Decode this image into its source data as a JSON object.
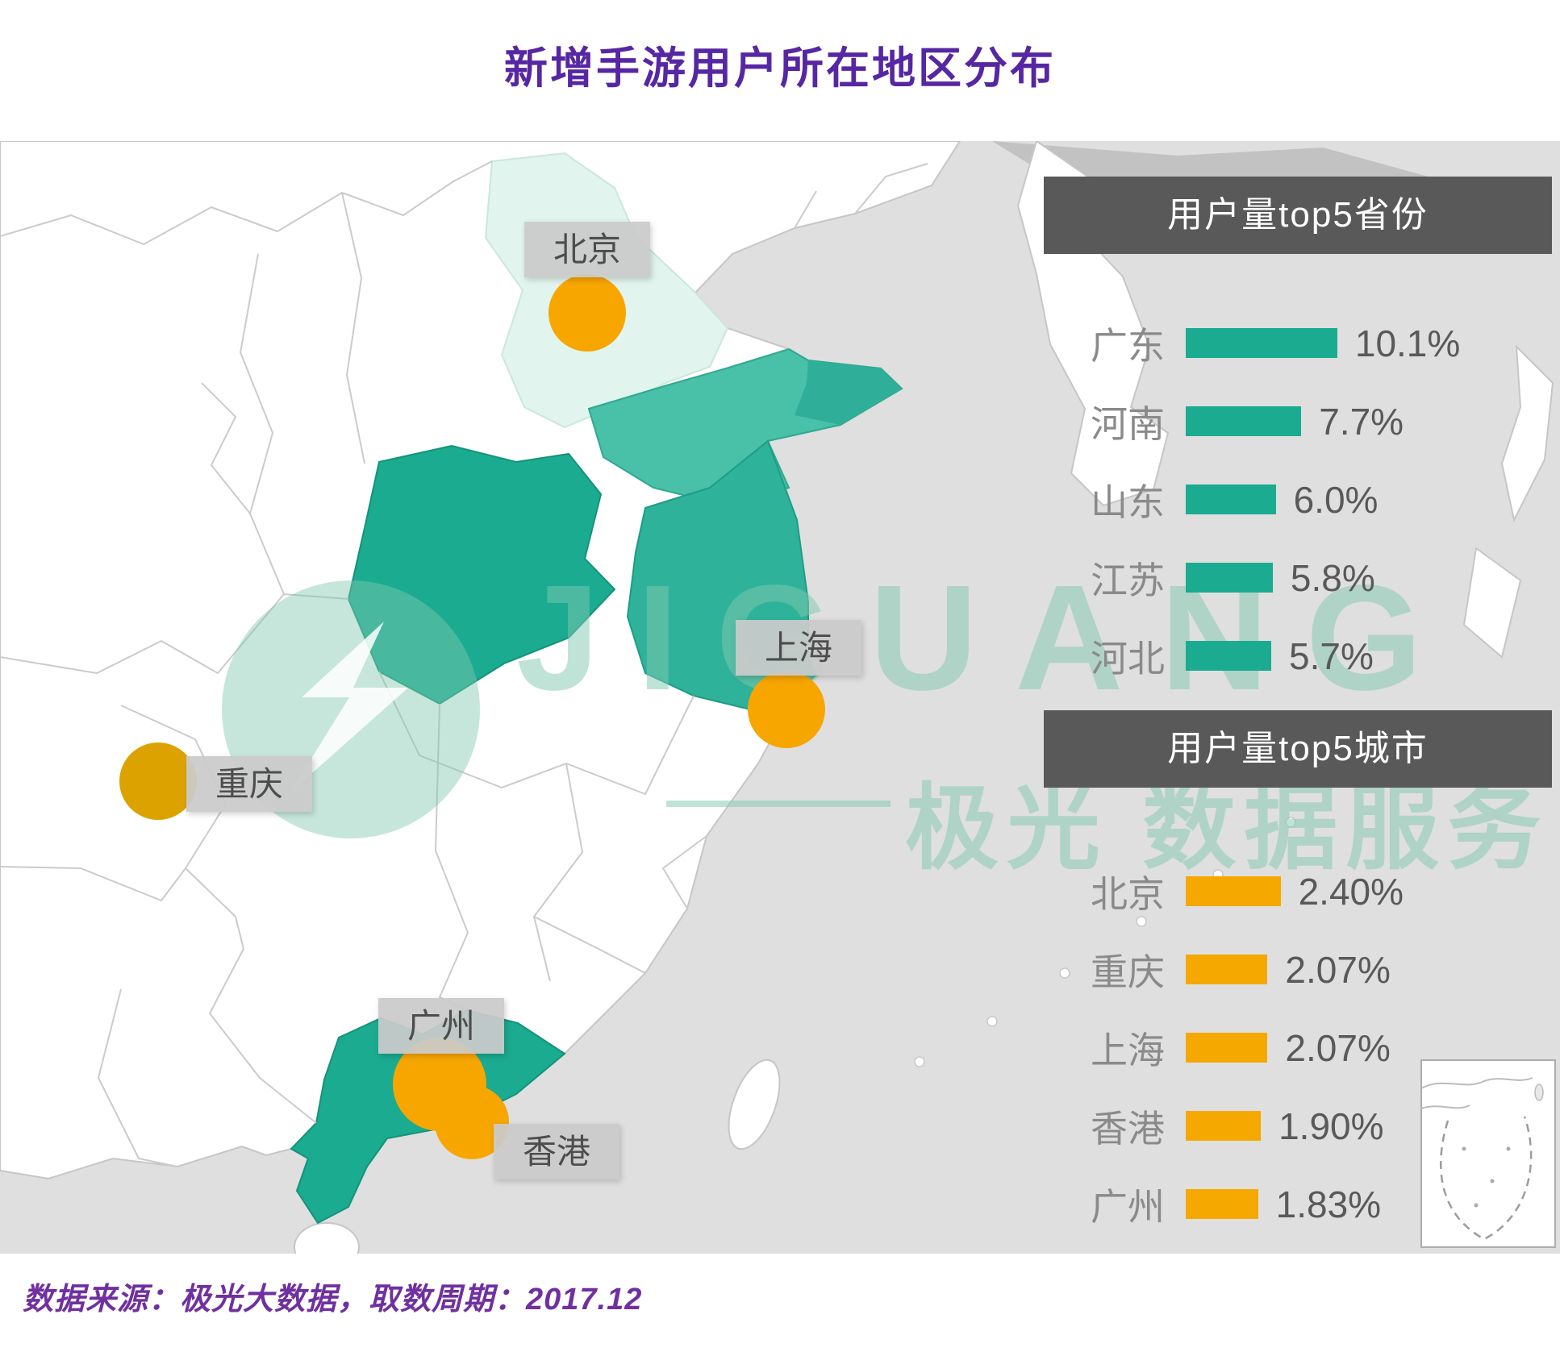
{
  "title": "新增手游用户所在地区分布",
  "footer": "数据来源：极光大数据，取数周期：2017.12",
  "watermark": {
    "latin": "JIGUANG",
    "cjk": "极光 数据服务"
  },
  "colors": {
    "title_purple": "#5727A3",
    "footer_purple": "#7030A0",
    "panel_header_bg": "#595959",
    "province_bar": "#1BAB90",
    "city_bar": "#F5A800",
    "marker_orange": "#F7A600",
    "marker_mustard": "#DCA300",
    "sea_gray": "#DFDFDF",
    "highlight_light_mint": "#E1F4EE",
    "highlight_teal_medium": "#49C0A8",
    "highlight_teal_strong": "#1BAB90"
  },
  "map": {
    "labels": [
      {
        "text": "北京"
      },
      {
        "text": "上海"
      },
      {
        "text": "重庆"
      },
      {
        "text": "广州"
      },
      {
        "text": "香港"
      }
    ],
    "highlighted_regions": [
      {
        "region": "hebei-beijing-area",
        "color": "#E1F4EE"
      },
      {
        "region": "shandong",
        "color": "#49C0A8"
      },
      {
        "region": "henan",
        "color": "#1BAB90"
      },
      {
        "region": "jiangsu",
        "color": "#2FB29A"
      },
      {
        "region": "guangdong",
        "color": "#1BAB90"
      }
    ]
  },
  "chart_data": [
    {
      "type": "bar",
      "orientation": "horizontal",
      "title": "用户量top5省份",
      "categories": [
        "广东",
        "河南",
        "山东",
        "江苏",
        "河北"
      ],
      "values": [
        10.1,
        7.7,
        6.0,
        5.8,
        5.7
      ],
      "value_labels": [
        "10.1%",
        "7.7%",
        "6.0%",
        "5.8%",
        "5.7%"
      ],
      "unit": "%",
      "bar_color": "#1BAB90",
      "xlim": [
        0,
        10.1
      ],
      "grid": false,
      "legend": "none"
    },
    {
      "type": "bar",
      "orientation": "horizontal",
      "title": "用户量top5城市",
      "categories": [
        "北京",
        "重庆",
        "上海",
        "香港",
        "广州"
      ],
      "values": [
        2.4,
        2.07,
        2.07,
        1.9,
        1.83
      ],
      "value_labels": [
        "2.40%",
        "2.07%",
        "2.07%",
        "1.90%",
        "1.83%"
      ],
      "unit": "%",
      "bar_color": "#F5A800",
      "xlim": [
        0,
        2.4
      ],
      "grid": false,
      "legend": "none"
    }
  ]
}
